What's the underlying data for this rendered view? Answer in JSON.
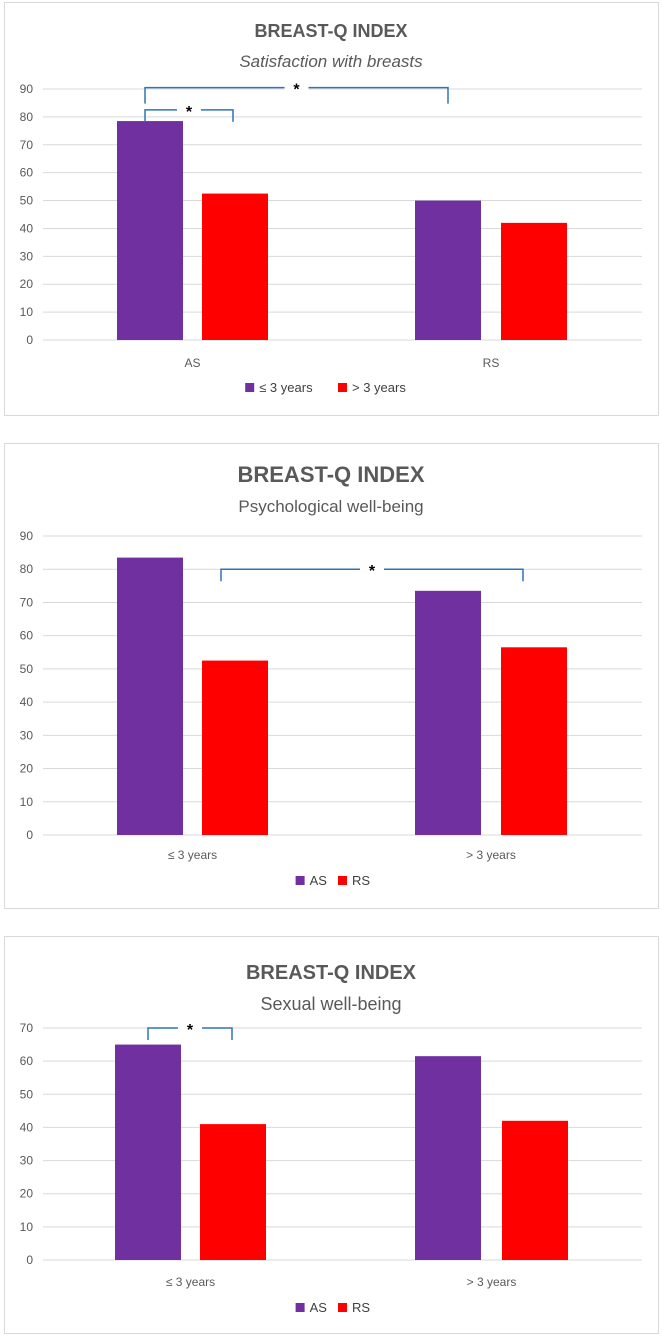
{
  "colors": {
    "as": "#7030A0",
    "rs": "#FF0000",
    "bracket": "#2E75B6",
    "grid": "#d9d9d9",
    "text": "#595959"
  },
  "chart_data": [
    {
      "type": "bar",
      "title": "BREAST-Q  INDEX",
      "subtitle": "Satisfaction with breasts",
      "subtitle_italic": true,
      "categories": [
        "AS",
        "RS"
      ],
      "series": [
        {
          "name": "≤ 3 years",
          "values": [
            78.5,
            50
          ]
        },
        {
          "name": "> 3 years",
          "values": [
            52.5,
            42
          ]
        }
      ],
      "ylim": [
        0,
        90
      ],
      "yticks": [
        0,
        10,
        20,
        30,
        40,
        50,
        60,
        70,
        80,
        90
      ],
      "annotations": [
        {
          "label": "*",
          "from": "series 1 of AS",
          "to": "series 2 of AS",
          "y": 82.5
        },
        {
          "label": "*",
          "from": "series 1 of AS",
          "to": "series 1 of RS",
          "y": 90.5
        }
      ],
      "legend": "bottom"
    },
    {
      "type": "bar",
      "title": "BREAST-Q  INDEX",
      "subtitle": "Psychological well-being",
      "subtitle_italic": false,
      "categories": [
        "≤ 3 years",
        "> 3 years"
      ],
      "series": [
        {
          "name": "AS",
          "values": [
            83.5,
            73.5
          ]
        },
        {
          "name": "RS",
          "values": [
            52.5,
            56.5
          ]
        }
      ],
      "ylim": [
        0,
        90
      ],
      "yticks": [
        0,
        10,
        20,
        30,
        40,
        50,
        60,
        70,
        80,
        90
      ],
      "annotations": [
        {
          "label": "*",
          "from": "series 2 of ≤ 3 years",
          "to": "series 2 of > 3 years",
          "y": 80
        }
      ],
      "legend": "bottom"
    },
    {
      "type": "bar",
      "title": "BREAST-Q  INDEX",
      "subtitle": "Sexual well-being",
      "subtitle_italic": false,
      "categories": [
        "≤ 3 years",
        "> 3 years"
      ],
      "series": [
        {
          "name": "AS",
          "values": [
            65,
            61.5
          ]
        },
        {
          "name": "RS",
          "values": [
            41,
            42
          ]
        }
      ],
      "ylim": [
        0,
        70
      ],
      "yticks": [
        0,
        10,
        20,
        30,
        40,
        50,
        60,
        70
      ],
      "annotations": [
        {
          "label": "*",
          "from": "series 1 of ≤ 3 years",
          "to": "series 2 of ≤ 3 years",
          "y": 70
        }
      ],
      "legend": "bottom"
    }
  ]
}
